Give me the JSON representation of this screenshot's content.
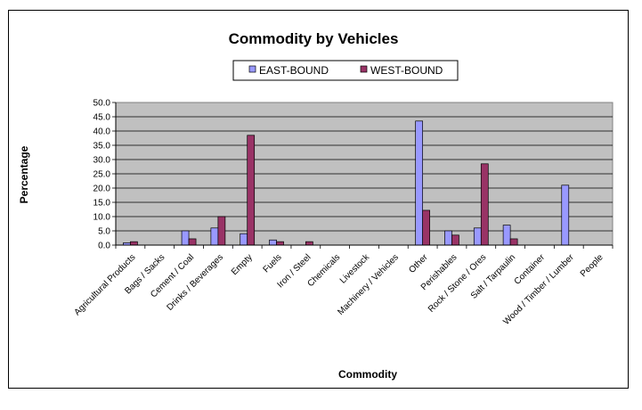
{
  "chart_data": {
    "type": "bar",
    "title": "Commodity by Vehicles",
    "xlabel": "Commodity",
    "ylabel": "Percentage",
    "ylim": [
      0,
      50
    ],
    "yticks": [
      "0.0",
      "5.0",
      "10.0",
      "15.0",
      "20.0",
      "25.0",
      "30.0",
      "35.0",
      "40.0",
      "45.0",
      "50.0"
    ],
    "grid": true,
    "legend_position": "top-center",
    "categories": [
      "Agricultural Products",
      "Bags / Sacks",
      "Cement / Coal",
      "Drinks / Beverages",
      "Empty",
      "Fuels",
      "Iron / Steel",
      "Chemicals",
      "Livestock",
      "Machinery / Vehicles",
      "Other",
      "Perishables",
      "Rock / Stone / Ores",
      "Salt / Tarpaulin",
      "Container",
      "Wood / Timber / Lumber",
      "People"
    ],
    "series": [
      {
        "name": "EAST-BOUND",
        "color": "#9999ff",
        "values": [
          0.8,
          0,
          5.0,
          6.0,
          4.0,
          1.8,
          0,
          0,
          0,
          0,
          43.5,
          5.0,
          6.0,
          7.0,
          0,
          21.0,
          0
        ]
      },
      {
        "name": "WEST-BOUND",
        "color": "#993366",
        "values": [
          1.2,
          0,
          2.2,
          10.0,
          38.5,
          1.2,
          1.2,
          0,
          0,
          0,
          12.2,
          3.5,
          28.5,
          2.2,
          0,
          0,
          0
        ]
      }
    ],
    "plot_background": "#c0c0c0"
  }
}
